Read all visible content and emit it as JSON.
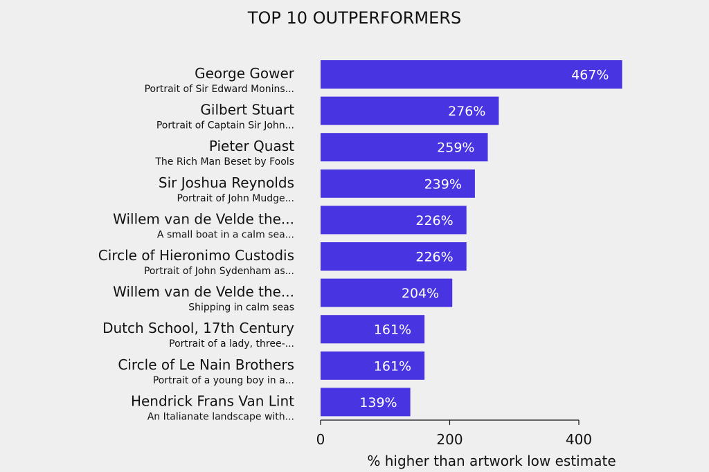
{
  "chart_data": {
    "type": "bar",
    "orientation": "horizontal",
    "title": "TOP 10 OUTPERFORMERS",
    "xlabel": "% higher than artwork low estimate",
    "xlim": [
      0,
      400
    ],
    "xticks": [
      0,
      200,
      400
    ],
    "value_suffix": "%",
    "bar_color": "#4834e0",
    "background_color": "#efefef",
    "grid": false,
    "legend": "none",
    "items": [
      {
        "artist": "George Gower",
        "artwork": "Portrait of Sir Edward Monins...",
        "value": 467
      },
      {
        "artist": "Gilbert Stuart",
        "artwork": "Portrait of Captain Sir John...",
        "value": 276
      },
      {
        "artist": "Pieter Quast",
        "artwork": "The Rich Man Beset by Fools",
        "value": 259
      },
      {
        "artist": "Sir Joshua Reynolds",
        "artwork": "Portrait of John Mudge...",
        "value": 239
      },
      {
        "artist": "Willem van de Velde the...",
        "artwork": "A small boat in a calm sea...",
        "value": 226
      },
      {
        "artist": "Circle of Hieronimo Custodis",
        "artwork": "Portrait of John Sydenham as...",
        "value": 226
      },
      {
        "artist": "Willem van de Velde the...",
        "artwork": "Shipping in calm seas",
        "value": 204
      },
      {
        "artist": "Dutch School, 17th Century",
        "artwork": "Portrait of a lady, three-...",
        "value": 161
      },
      {
        "artist": "Circle of Le Nain Brothers",
        "artwork": "Portrait of a young boy in a...",
        "value": 161
      },
      {
        "artist": "Hendrick Frans Van Lint",
        "artwork": "An Italianate landscape with...",
        "value": 139
      }
    ]
  }
}
